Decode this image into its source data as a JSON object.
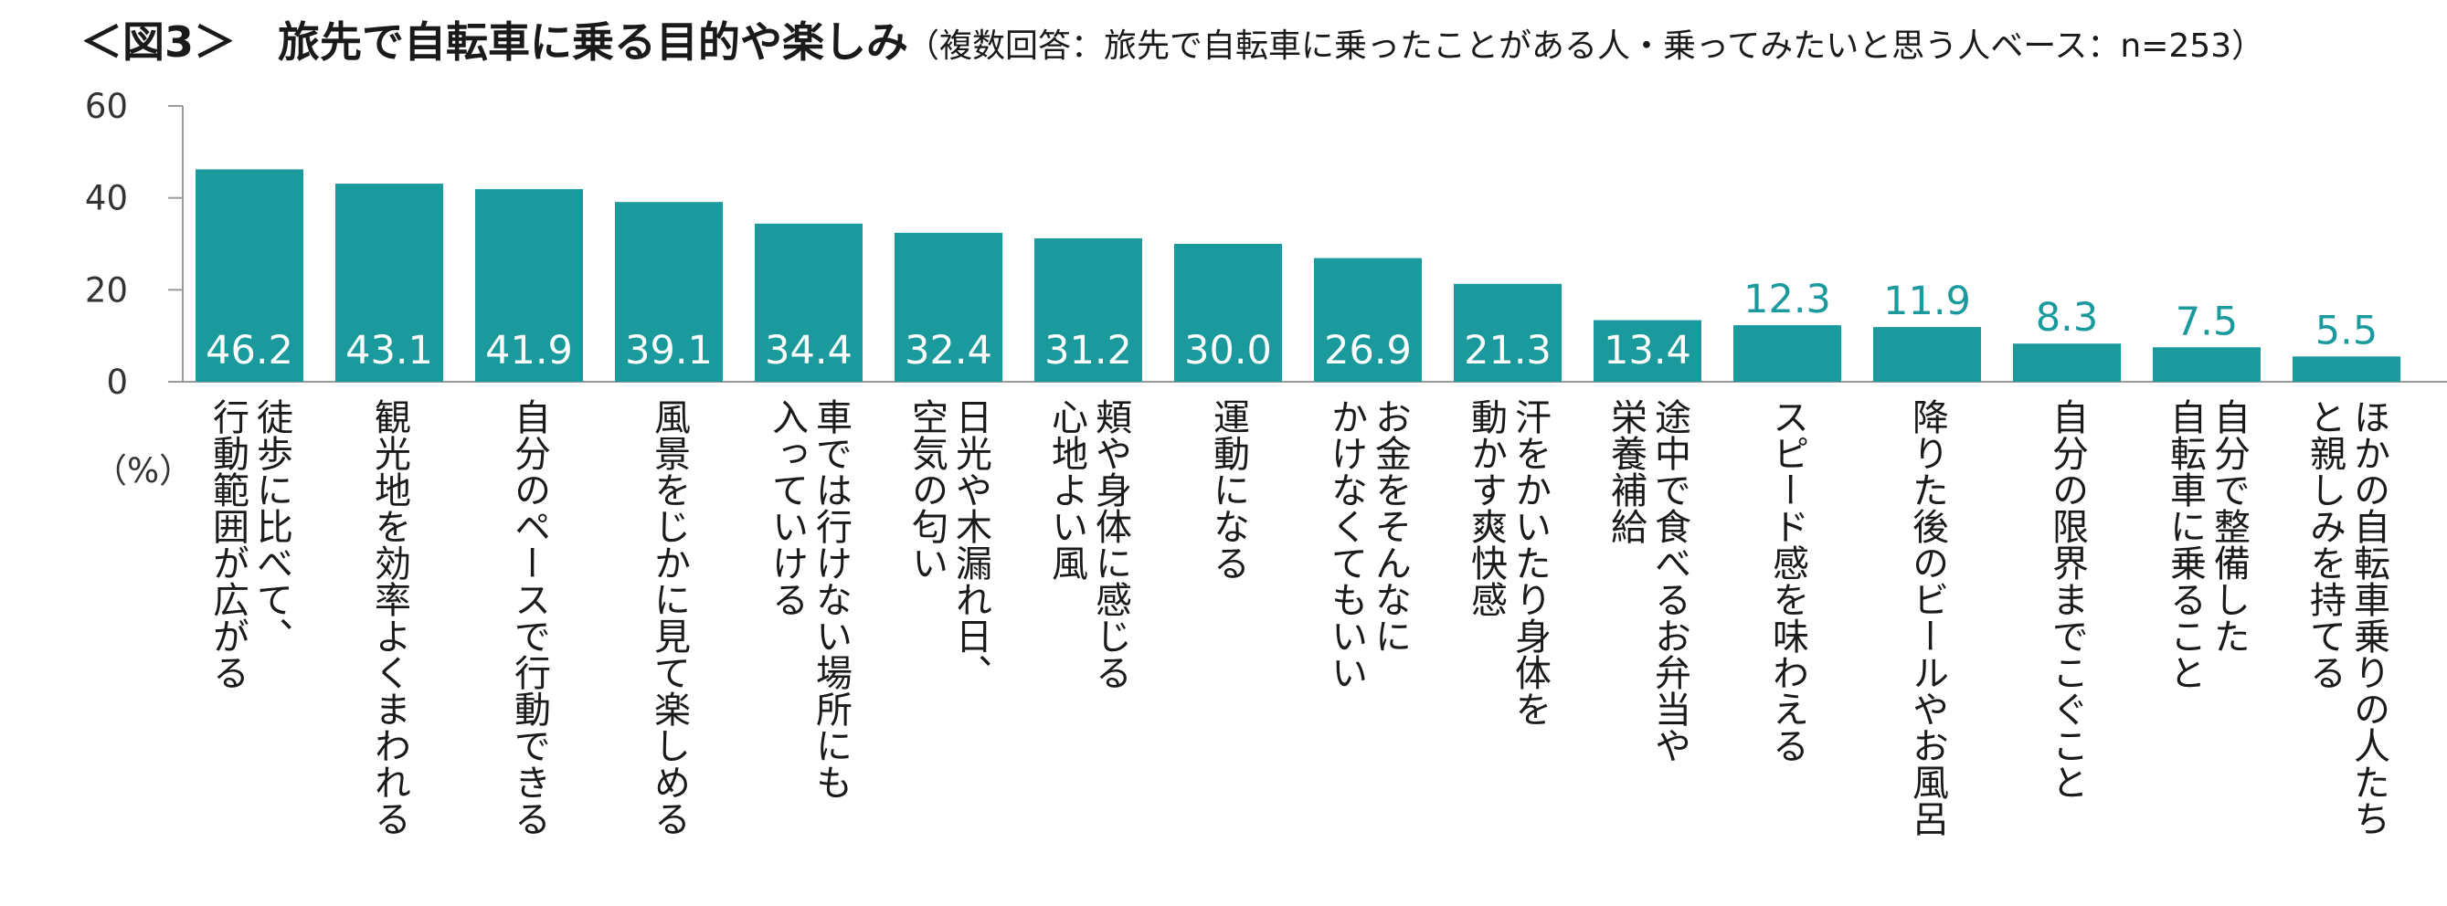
{
  "chart_data": {
    "type": "bar",
    "title": "＜図3＞　旅先で自転車に乗る目的や楽しみ",
    "subtitle": "（複数回答：旅先で自転車に乗ったことがある人・乗ってみたいと思う人ベース：n=253）",
    "ylabel": "（%）",
    "ylim": [
      0,
      60
    ],
    "yticks": [
      "0",
      "20",
      "40",
      "60"
    ],
    "bar_color": "#1a9a9c",
    "label_inside_color": "#ffffff",
    "label_outside_color": "#1a9a9c",
    "grid": false,
    "categories": [
      [
        "徒歩に比べて、",
        "行動範囲が広がる"
      ],
      [
        "観光地を効率よくまわれる"
      ],
      [
        "自分のペースで行動できる"
      ],
      [
        "風景をじかに見て楽しめる"
      ],
      [
        "車では行けない場所にも",
        "入っていける"
      ],
      [
        "日光や木漏れ日、",
        "空気の匂い"
      ],
      [
        "頬や身体に感じる",
        "心地よい風"
      ],
      [
        "運動になる"
      ],
      [
        "お金をそんなに",
        "かけなくてもいい"
      ],
      [
        "汗をかいたり身体を",
        "動かす爽快感"
      ],
      [
        "途中で食べるお弁当や",
        "栄養補給"
      ],
      [
        "スピード感を味わえる"
      ],
      [
        "降りた後のビールやお風呂"
      ],
      [
        "自分の限界までこぐこと"
      ],
      [
        "自分で整備した",
        "自転車に乗ること"
      ],
      [
        "ほかの自転車乗りの人たち",
        "と親しみを持てる"
      ]
    ],
    "values": [
      46.2,
      43.1,
      41.9,
      39.1,
      34.4,
      32.4,
      31.2,
      30.0,
      26.9,
      21.3,
      13.4,
      12.3,
      11.9,
      8.3,
      7.5,
      5.5
    ],
    "value_labels": [
      "46.2",
      "43.1",
      "41.9",
      "39.1",
      "34.4",
      "32.4",
      "31.2",
      "30.0",
      "26.9",
      "21.3",
      "13.4",
      "12.3",
      "11.9",
      "8.3",
      "7.5",
      "5.5"
    ]
  }
}
